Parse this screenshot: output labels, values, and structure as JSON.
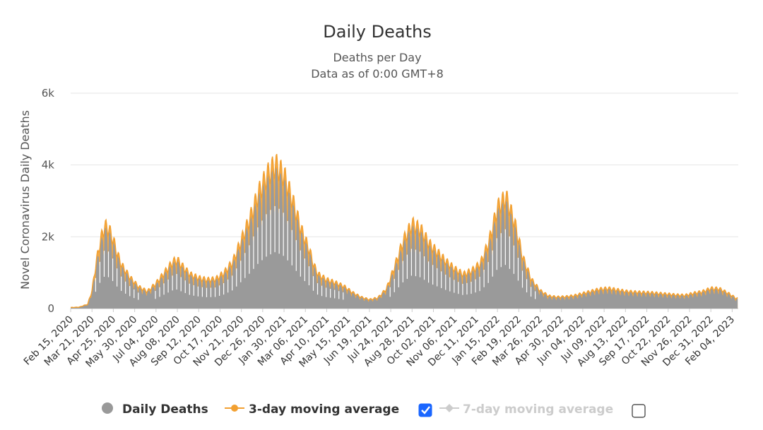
{
  "chart_data": {
    "type": "area",
    "title": "Daily Deaths",
    "subtitle": [
      "Deaths per Day",
      "Data as of 0:00 GMT+8"
    ],
    "ylabel": "Novel Coronavirus Daily Deaths",
    "xlabel": "",
    "ylim": [
      0,
      6000
    ],
    "yticks": [
      {
        "value": 0,
        "label": "0"
      },
      {
        "value": 2000,
        "label": "2k"
      },
      {
        "value": 4000,
        "label": "4k"
      },
      {
        "value": 6000,
        "label": "6k"
      }
    ],
    "x_start": "Feb 15, 2020",
    "x_end": "Feb 10, 2023",
    "xtick_labels": [
      "Feb 15, 2020",
      "Mar 21, 2020",
      "Apr 25, 2020",
      "May 30, 2020",
      "Jul 04, 2020",
      "Aug 08, 2020",
      "Sep 12, 2020",
      "Oct 17, 2020",
      "Nov 21, 2020",
      "Dec 26, 2020",
      "Jan 30, 2021",
      "Mar 06, 2021",
      "Apr 10, 2021",
      "May 15, 2021",
      "Jun 19, 2021",
      "Jul 24, 2021",
      "Aug 28, 2021",
      "Oct 02, 2021",
      "Nov 06, 2021",
      "Dec 11, 2021",
      "Jan 15, 2022",
      "Feb 19, 2022",
      "Mar 26, 2022",
      "Apr 30, 2022",
      "Jun 04, 2022",
      "Jul 09, 2022",
      "Aug 13, 2022",
      "Sep 17, 2022",
      "Oct 22, 2022",
      "Nov 26, 2022",
      "Dec 31, 2022",
      "Feb 04, 2023"
    ],
    "trend_weeks": [
      0,
      2,
      4,
      5,
      6,
      7,
      8,
      9,
      10,
      11,
      12,
      14,
      16,
      18,
      20,
      22,
      24,
      25,
      26,
      28,
      30,
      32,
      34,
      36,
      38,
      40,
      42,
      44,
      46,
      48,
      50,
      52,
      54,
      56,
      57,
      58,
      60,
      62,
      64,
      66,
      68,
      70,
      72,
      74,
      76,
      78,
      80,
      82,
      84,
      86,
      88,
      90,
      92,
      94,
      96,
      98,
      100,
      102,
      104,
      106,
      108,
      110,
      112,
      114,
      116,
      118,
      120,
      122,
      124,
      126,
      128,
      130,
      132,
      134,
      136,
      138,
      140,
      142,
      144,
      146,
      148,
      150,
      152,
      154,
      156
    ],
    "trend_3day": [
      30,
      40,
      120,
      500,
      1300,
      1900,
      2300,
      2200,
      1900,
      1500,
      1200,
      850,
      600,
      480,
      700,
      1000,
      1300,
      1350,
      1200,
      950,
      850,
      800,
      820,
      1000,
      1300,
      1900,
      2500,
      3200,
      3700,
      4000,
      3700,
      3000,
      2200,
      1600,
      1200,
      950,
      800,
      720,
      620,
      450,
      320,
      250,
      300,
      550,
      1200,
      1900,
      2350,
      2200,
      1800,
      1550,
      1300,
      1100,
      950,
      1050,
      1250,
      1850,
      2800,
      3100,
      2400,
      1400,
      800,
      500,
      350,
      320,
      330,
      360,
      420,
      480,
      540,
      560,
      520,
      480,
      460,
      450,
      440,
      420,
      400,
      380,
      370,
      430,
      470,
      560,
      550,
      430,
      280
    ],
    "series": [
      {
        "name": "Daily Deaths",
        "color": "#999999",
        "visible": true,
        "marker": "circle"
      },
      {
        "name": "3-day moving average",
        "color": "#F2A031",
        "visible": true,
        "marker": "circle",
        "checked": true
      },
      {
        "name": "7-day moving average",
        "color": "#cccccc",
        "visible": false,
        "marker": "diamond",
        "checked": false
      }
    ]
  }
}
